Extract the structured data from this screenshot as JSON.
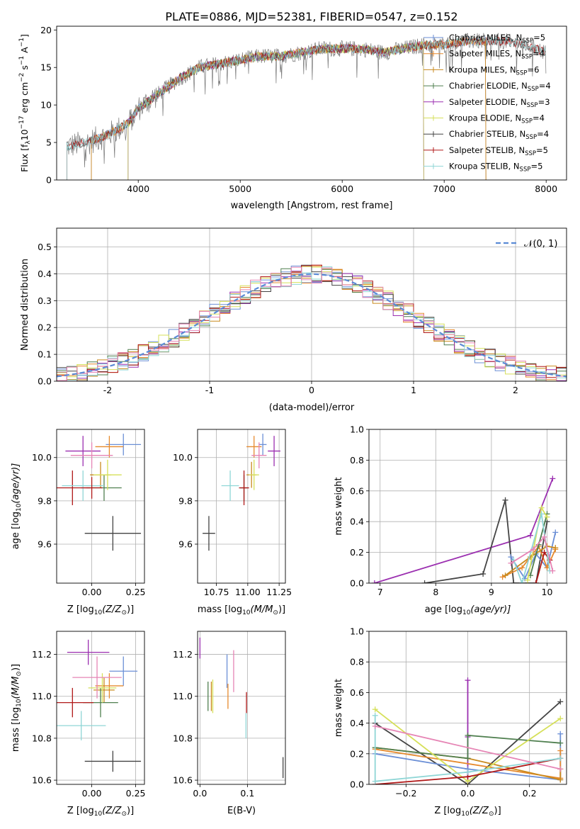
{
  "figure_title": "PLATE=0886, MJD=52381, FIBERID=0547, z=0.152",
  "model_colors": {
    "Chabrier MILES": "#6b8fd6",
    "Salpeter MILES": "#e68a2e",
    "Kroupa MILES": "#c98a1e",
    "Chabrier ELODIE": "#4f7f4f",
    "Salpeter ELODIE": "#9b2fb0",
    "Kroupa ELODIE": "#d6e05a",
    "Chabrier STELIB": "#444444",
    "Salpeter STELIB": "#b01818",
    "Kroupa STELIB": "#8fd6d6",
    "pink": "#e685b5"
  },
  "chart_data": [
    {
      "id": "spectrum",
      "type": "line",
      "xlabel": "wavelength [Angstrom, rest frame]",
      "ylabel": "Flux [f",
      "ylabel_sub": "λ",
      "ylabel_rest": "10",
      "ylabel_exp": "−17",
      "ylabel_units": " erg cm",
      "ylabel_exp2": "−2",
      "ylabel_s": " s",
      "ylabel_exp3": "−1",
      "ylabel_end": " A",
      "ylabel_exp4": "−1",
      "ylabel_close": "]",
      "xlim": [
        3200,
        8200
      ],
      "ylim": [
        0,
        20.5
      ],
      "xticks": [
        4000,
        5000,
        6000,
        7000,
        8000
      ],
      "yticks": [
        0,
        5,
        10,
        15,
        20
      ],
      "continuum_x": [
        3300,
        3500,
        3700,
        3900,
        4000,
        4200,
        4400,
        4600,
        4800,
        5000,
        5200,
        5400,
        5600,
        5800,
        6000,
        6200,
        6400,
        6600,
        6800,
        7000,
        7200,
        7400,
        7600,
        7800,
        8000
      ],
      "continuum_y": [
        4.5,
        5.0,
        6.0,
        7.5,
        9.5,
        11.5,
        13.5,
        15.0,
        15.5,
        16.0,
        16.5,
        16.5,
        17.0,
        17.5,
        17.5,
        17.5,
        17.0,
        17.5,
        18.0,
        18.0,
        18.5,
        18.5,
        18.5,
        18.0,
        17.0
      ],
      "legend": [
        {
          "label": "Chabrier MILES, N",
          "sub": "SSP",
          "eq": "=5"
        },
        {
          "label": "Salpeter MILES, N",
          "sub": "SSP",
          "eq": "=4"
        },
        {
          "label": "Kroupa MILES, N",
          "sub": "SSP",
          "eq": "=6"
        },
        {
          "label": "Chabrier ELODIE, N",
          "sub": "SSP",
          "eq": "=4"
        },
        {
          "label": "Salpeter ELODIE, N",
          "sub": "SSP",
          "eq": "=3"
        },
        {
          "label": "Kroupa ELODIE, N",
          "sub": "SSP",
          "eq": "=4"
        },
        {
          "label": "Chabrier STELIB, N",
          "sub": "SSP",
          "eq": "=4"
        },
        {
          "label": "Salpeter STELIB, N",
          "sub": "SSP",
          "eq": "=5"
        },
        {
          "label": "Kroupa STELIB, N",
          "sub": "SSP",
          "eq": "=5"
        }
      ],
      "legend_placement": "upper right"
    },
    {
      "id": "residuals",
      "type": "step",
      "xlabel": "(data-model)/error",
      "ylabel": "Normed distribution",
      "xlim": [
        -2.5,
        2.5
      ],
      "ylim": [
        0,
        0.57
      ],
      "xticks": [
        -2,
        -1,
        0,
        1,
        2
      ],
      "yticks": [
        0.0,
        0.1,
        0.2,
        0.3,
        0.4,
        0.5
      ],
      "legend_label": "𝒩(0, 1)",
      "legend_placement": "upper right",
      "gaussian": {
        "mean": 0,
        "sigma": 1
      }
    },
    {
      "id": "z_age",
      "type": "errorbar",
      "xlabel": "Z [log",
      "xlabel_sub": "10",
      "xlabel_rest": "(Z/Z",
      "xlabel_sun": "⊙",
      "xlabel_close": ")]",
      "ylabel": "age  [log",
      "ylabel_sub": "10",
      "ylabel_rest": "(age/yr)]",
      "xlim": [
        -0.2,
        0.3
      ],
      "ylim": [
        9.42,
        10.13
      ],
      "xticks": [
        0.0,
        0.25
      ],
      "xticklabels": [
        "0.00",
        "0.25"
      ],
      "yticks": [
        9.6,
        9.8,
        10.0
      ],
      "points": [
        {
          "model": "Chabrier MILES",
          "x": 0.18,
          "xerr": 0.1,
          "y": 10.06,
          "yerr": 0.05
        },
        {
          "model": "Salpeter MILES",
          "x": 0.1,
          "xerr": 0.08,
          "y": 10.05,
          "yerr": 0.05
        },
        {
          "model": "Kroupa MILES",
          "x": 0.05,
          "xerr": 0.06,
          "y": 9.92,
          "yerr": 0.06
        },
        {
          "model": "Chabrier ELODIE",
          "x": 0.07,
          "xerr": 0.1,
          "y": 9.86,
          "yerr": 0.06
        },
        {
          "model": "Salpeter ELODIE",
          "x": -0.05,
          "xerr": 0.1,
          "y": 10.03,
          "yerr": 0.07
        },
        {
          "model": "Kroupa ELODIE",
          "x": 0.09,
          "xerr": 0.08,
          "y": 9.92,
          "yerr": 0.07
        },
        {
          "model": "Chabrier STELIB",
          "x": 0.12,
          "xerr": 0.16,
          "y": 9.65,
          "yerr": 0.08
        },
        {
          "model": "Salpeter STELIB",
          "x": -0.11,
          "xerr": 0.1,
          "y": 9.86,
          "yerr": 0.08
        },
        {
          "model": "Kroupa STELIB",
          "x": -0.05,
          "xerr": 0.12,
          "y": 9.87,
          "yerr": 0.07
        },
        {
          "model": "pink",
          "x": 0.0,
          "xerr": 0.12,
          "y": 10.01,
          "yerr": 0.06
        },
        {
          "model": "Salpeter STELIB",
          "x": 0.0,
          "xerr": 0.06,
          "y": 9.86,
          "yerr": 0.05
        }
      ]
    },
    {
      "id": "mass_age",
      "type": "errorbar",
      "xlabel": "mass [log",
      "xlabel_sub": "10",
      "xlabel_rest": "(M/M",
      "xlabel_sun": "⊙",
      "xlabel_close": ")]",
      "xlim": [
        10.6,
        11.3
      ],
      "ylim": [
        9.42,
        10.13
      ],
      "xticks": [
        10.75,
        11.0,
        11.25
      ],
      "xticklabels": [
        "10.75",
        "11.00",
        "11.25"
      ],
      "yticks": [
        9.6,
        9.8,
        10.0
      ],
      "points": [
        {
          "model": "Chabrier MILES",
          "x": 11.12,
          "xerr": 0.03,
          "y": 10.06,
          "yerr": 0.05
        },
        {
          "model": "Salpeter MILES",
          "x": 11.05,
          "xerr": 0.06,
          "y": 10.05,
          "yerr": 0.05
        },
        {
          "model": "Kroupa MILES",
          "x": 11.03,
          "xerr": 0.04,
          "y": 9.92,
          "yerr": 0.06
        },
        {
          "model": "Chabrier ELODIE",
          "x": 10.97,
          "xerr": 0.03,
          "y": 9.86,
          "yerr": 0.06
        },
        {
          "model": "Salpeter ELODIE",
          "x": 11.21,
          "xerr": 0.05,
          "y": 10.03,
          "yerr": 0.07
        },
        {
          "model": "Kroupa ELODIE",
          "x": 11.05,
          "xerr": 0.04,
          "y": 9.92,
          "yerr": 0.07
        },
        {
          "model": "Chabrier STELIB",
          "x": 10.69,
          "xerr": 0.05,
          "y": 9.65,
          "yerr": 0.08
        },
        {
          "model": "Salpeter STELIB",
          "x": 10.97,
          "xerr": 0.04,
          "y": 9.86,
          "yerr": 0.08
        },
        {
          "model": "Kroupa STELIB",
          "x": 10.86,
          "xerr": 0.07,
          "y": 9.87,
          "yerr": 0.07
        },
        {
          "model": "pink",
          "x": 11.09,
          "xerr": 0.06,
          "y": 10.01,
          "yerr": 0.06
        }
      ]
    },
    {
      "id": "age_weight",
      "type": "line",
      "xlabel": "age  [log",
      "xlabel_sub": "10",
      "xlabel_rest": "(age/yr)]",
      "ylabel": "mass weight",
      "xlim": [
        6.8,
        10.35
      ],
      "ylim": [
        0,
        1.0
      ],
      "xticks": [
        7,
        8,
        9,
        10
      ],
      "yticks": [
        0.0,
        0.2,
        0.4,
        0.6,
        0.8,
        1.0
      ],
      "series": [
        {
          "model": "Salpeter ELODIE",
          "x": [
            6.9,
            9.7,
            10.1
          ],
          "y": [
            0.0,
            0.31,
            0.68
          ]
        },
        {
          "model": "Chabrier STELIB",
          "x": [
            7.8,
            8.85,
            9.25,
            9.4,
            9.8,
            10.0
          ],
          "y": [
            0.0,
            0.06,
            0.54,
            0.0,
            0.0,
            0.4
          ]
        },
        {
          "model": "Chabrier MILES",
          "x": [
            9.35,
            9.6,
            9.8,
            10.0,
            10.15
          ],
          "y": [
            0.17,
            0.03,
            0.19,
            0.1,
            0.33
          ]
        },
        {
          "model": "Salpeter MILES",
          "x": [
            9.2,
            9.55,
            9.85,
            10.0,
            10.15
          ],
          "y": [
            0.04,
            0.1,
            0.24,
            0.1,
            0.22
          ]
        },
        {
          "model": "Kroupa MILES",
          "x": [
            9.25,
            9.7,
            10.0,
            10.15
          ],
          "y": [
            0.05,
            0.17,
            0.24,
            0.23
          ]
        },
        {
          "model": "Chabrier ELODIE",
          "x": [
            9.7,
            9.85,
            10.0
          ],
          "y": [
            0.05,
            0.25,
            0.45
          ]
        },
        {
          "model": "Kroupa ELODIE",
          "x": [
            9.65,
            9.9,
            10.0
          ],
          "y": [
            0.02,
            0.49,
            0.43
          ]
        },
        {
          "model": "Salpeter STELIB",
          "x": [
            9.8,
            9.95,
            10.05
          ],
          "y": [
            0.0,
            0.2,
            0.15
          ]
        },
        {
          "model": "Kroupa STELIB",
          "x": [
            9.4,
            9.55,
            9.9,
            10.05
          ],
          "y": [
            0.15,
            0.0,
            0.45,
            0.08
          ]
        },
        {
          "model": "pink",
          "x": [
            9.35,
            9.75,
            9.95,
            10.1
          ],
          "y": [
            0.13,
            0.22,
            0.3,
            0.08
          ]
        }
      ]
    },
    {
      "id": "z_mass",
      "type": "errorbar",
      "xlabel": "Z [log",
      "xlabel_sub": "10",
      "xlabel_rest": "(Z/Z",
      "xlabel_sun": "⊙",
      "xlabel_close": ")]",
      "ylabel": "mass [log",
      "ylabel_sub": "10",
      "ylabel_rest": "(M/M",
      "ylabel_sun": "⊙",
      "ylabel_close": ")]",
      "xlim": [
        -0.2,
        0.3
      ],
      "ylim": [
        10.58,
        11.31
      ],
      "xticks": [
        0.0,
        0.25
      ],
      "xticklabels": [
        "0.00",
        "0.25"
      ],
      "yticks": [
        10.6,
        10.8,
        11.0,
        11.2
      ],
      "points": [
        {
          "model": "Chabrier MILES",
          "x": 0.18,
          "xerr": 0.08,
          "y": 11.12,
          "yerr": 0.07
        },
        {
          "model": "Salpeter MILES",
          "x": 0.1,
          "xerr": 0.08,
          "y": 11.05,
          "yerr": 0.06
        },
        {
          "model": "Kroupa MILES",
          "x": 0.07,
          "xerr": 0.06,
          "y": 11.03,
          "yerr": 0.06
        },
        {
          "model": "Chabrier ELODIE",
          "x": 0.05,
          "xerr": 0.1,
          "y": 10.97,
          "yerr": 0.07
        },
        {
          "model": "Salpeter ELODIE",
          "x": -0.02,
          "xerr": 0.12,
          "y": 11.21,
          "yerr": 0.06
        },
        {
          "model": "Kroupa ELODIE",
          "x": 0.06,
          "xerr": 0.08,
          "y": 11.04,
          "yerr": 0.07
        },
        {
          "model": "Chabrier STELIB",
          "x": 0.12,
          "xerr": 0.16,
          "y": 10.69,
          "yerr": 0.05
        },
        {
          "model": "Salpeter STELIB",
          "x": -0.11,
          "xerr": 0.12,
          "y": 10.97,
          "yerr": 0.07
        },
        {
          "model": "Kroupa STELIB",
          "x": -0.06,
          "xerr": 0.14,
          "y": 10.86,
          "yerr": 0.07
        },
        {
          "model": "pink",
          "x": 0.03,
          "xerr": 0.14,
          "y": 11.09,
          "yerr": 0.1
        }
      ]
    },
    {
      "id": "ebv_mass",
      "type": "errorbar",
      "xlabel": "E(B-V)",
      "xlim": [
        -0.005,
        0.18
      ],
      "ylim": [
        10.58,
        11.31
      ],
      "xticks": [
        0.0,
        0.1
      ],
      "xticklabels": [
        "0.0",
        "0.1"
      ],
      "yticks": [
        10.6,
        10.8,
        11.0,
        11.2
      ],
      "points": [
        {
          "model": "Chabrier MILES",
          "x": 0.057,
          "xerr": 0,
          "y": 11.12,
          "yerr": 0.08
        },
        {
          "model": "Salpeter MILES",
          "x": 0.059,
          "xerr": 0,
          "y": 11.0,
          "yerr": 0.06
        },
        {
          "model": "Kroupa MILES",
          "x": 0.024,
          "xerr": 0,
          "y": 11.0,
          "yerr": 0.07
        },
        {
          "model": "Chabrier ELODIE",
          "x": 0.017,
          "xerr": 0,
          "y": 11.0,
          "yerr": 0.07
        },
        {
          "model": "Salpeter ELODIE",
          "x": 0.0,
          "xerr": 0,
          "y": 11.23,
          "yerr": 0.05
        },
        {
          "model": "Kroupa ELODIE",
          "x": 0.027,
          "xerr": 0,
          "y": 11.0,
          "yerr": 0.08
        },
        {
          "model": "Chabrier STELIB",
          "x": 0.175,
          "xerr": 0,
          "y": 10.66,
          "yerr": 0.05
        },
        {
          "model": "Salpeter STELIB",
          "x": 0.098,
          "xerr": 0,
          "y": 10.97,
          "yerr": 0.05
        },
        {
          "model": "Kroupa STELIB",
          "x": 0.097,
          "xerr": 0,
          "y": 10.86,
          "yerr": 0.06
        },
        {
          "model": "pink",
          "x": 0.071,
          "xerr": 0,
          "y": 11.12,
          "yerr": 0.1
        }
      ]
    },
    {
      "id": "z_weight",
      "type": "line",
      "xlabel": "Z [log",
      "xlabel_sub": "10",
      "xlabel_rest": "(Z/Z",
      "xlabel_sun": "⊙",
      "xlabel_close": ")]",
      "ylabel": "mass weight",
      "xlim": [
        -0.32,
        0.32
      ],
      "ylim": [
        0,
        1.0
      ],
      "xticks": [
        -0.2,
        0.0,
        0.2
      ],
      "xticklabels": [
        "−0.2",
        "0.0",
        "0.2"
      ],
      "yticks": [
        0.0,
        0.2,
        0.4,
        0.6,
        0.8,
        1.0
      ],
      "series": [
        {
          "model": "Salpeter ELODIE",
          "x": [
            0.0,
            0.0,
            0.0
          ],
          "y": [
            0.0,
            0.31,
            0.68
          ]
        },
        {
          "model": "Chabrier STELIB",
          "x": [
            -0.3,
            0.0,
            0.3
          ],
          "y": [
            0.4,
            0.0,
            0.54
          ]
        },
        {
          "model": "Chabrier MILES",
          "x": [
            -0.3,
            0.0,
            0.3,
            0.3
          ],
          "y": [
            0.2,
            0.1,
            0.03,
            0.33
          ]
        },
        {
          "model": "Salpeter MILES",
          "x": [
            -0.3,
            0.3,
            0.3
          ],
          "y": [
            0.23,
            0.04,
            0.22
          ]
        },
        {
          "model": "Kroupa MILES",
          "x": [
            -0.3,
            0.0,
            0.3,
            0.3
          ],
          "y": [
            0.24,
            0.17,
            0.03,
            0.1
          ]
        },
        {
          "model": "Chabrier ELODIE",
          "x": [
            -0.3,
            0.0,
            0.0,
            0.3
          ],
          "y": [
            0.24,
            0.17,
            0.32,
            0.27
          ]
        },
        {
          "model": "Kroupa ELODIE",
          "x": [
            -0.3,
            0.0,
            0.3
          ],
          "y": [
            0.49,
            0.02,
            0.43
          ]
        },
        {
          "model": "Salpeter STELIB",
          "x": [
            -0.3,
            0.0,
            0.3
          ],
          "y": [
            0.0,
            0.05,
            0.17
          ]
        },
        {
          "model": "Kroupa STELIB",
          "x": [
            -0.3,
            -0.3,
            0.0,
            0.3
          ],
          "y": [
            0.45,
            0.02,
            0.08,
            0.17
          ]
        },
        {
          "model": "pink",
          "x": [
            -0.3,
            0.3
          ],
          "y": [
            0.38,
            0.1
          ]
        }
      ]
    }
  ]
}
